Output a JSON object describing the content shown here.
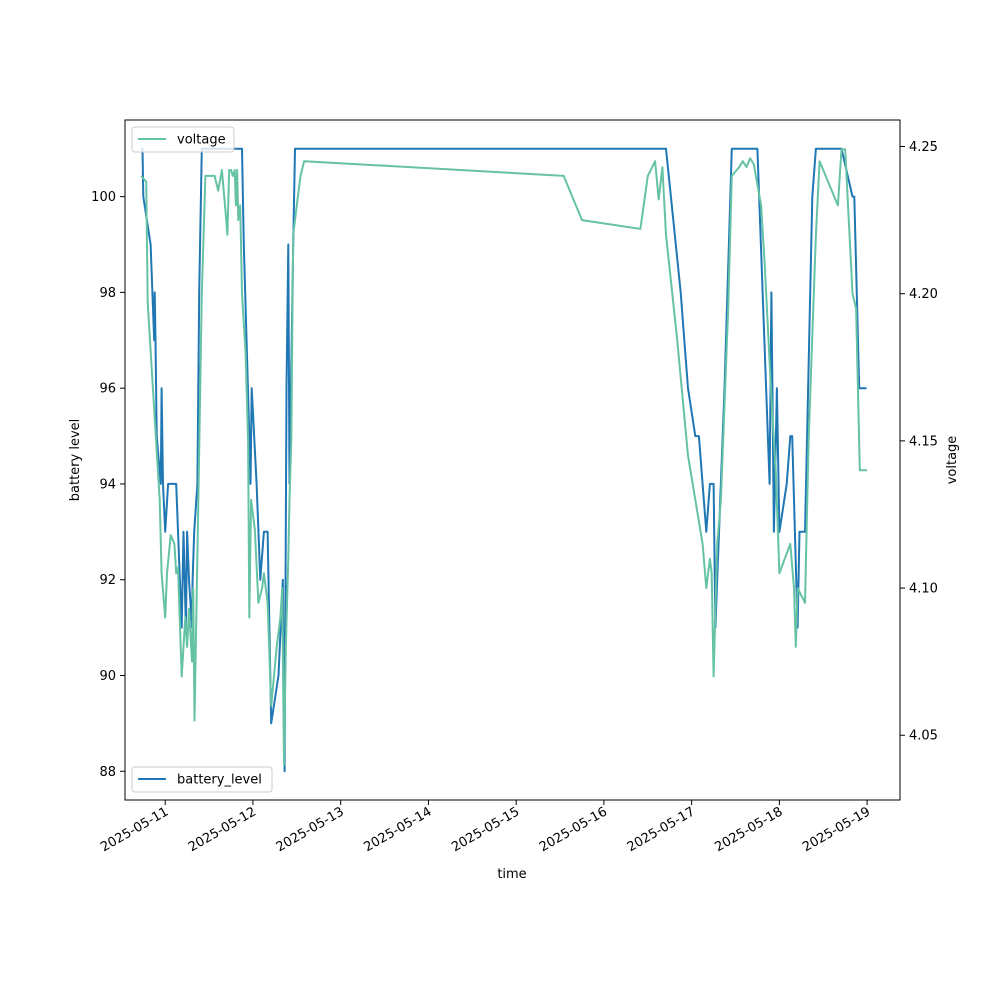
{
  "chart_data": {
    "type": "line",
    "xlabel": "time",
    "ylabel_left": "battery level",
    "ylabel_right": "voltage",
    "x_ticks": [
      "2025-05-11",
      "2025-05-12",
      "2025-05-13",
      "2025-05-14",
      "2025-05-15",
      "2025-05-16",
      "2025-05-17",
      "2025-05-18",
      "2025-05-19"
    ],
    "x_range": [
      "2025-05-10 13:00",
      "2025-05-19 09:00"
    ],
    "left_axis": {
      "ticks": [
        "88",
        "90",
        "92",
        "94",
        "96",
        "98",
        "100"
      ],
      "ylim": [
        87.4,
        101.6
      ]
    },
    "right_axis": {
      "ticks": [
        "4.05",
        "4.10",
        "4.15",
        "4.20",
        "4.25"
      ],
      "ylim": [
        4.028,
        4.259
      ]
    },
    "grid": false,
    "legend_voltage": {
      "label": "voltage",
      "placement": "upper left"
    },
    "legend_battery": {
      "label": "battery_level",
      "placement": "lower left"
    },
    "series": [
      {
        "name": "battery_level",
        "axis": "left",
        "color": "#1f77b4",
        "points": [
          [
            "2025-05-10 17:24",
            101
          ],
          [
            "2025-05-10 17:48",
            101
          ],
          [
            "2025-05-10 18:00",
            100
          ],
          [
            "2025-05-10 20:00",
            99
          ],
          [
            "2025-05-10 21:00",
            97
          ],
          [
            "2025-05-10 21:07",
            98
          ],
          [
            "2025-05-10 21:20",
            97
          ],
          [
            "2025-05-10 21:40",
            95
          ],
          [
            "2025-05-10 22:48",
            94
          ],
          [
            "2025-05-10 23:00",
            96
          ],
          [
            "2025-05-10 23:24",
            94
          ],
          [
            "2025-05-11 00:00",
            93
          ],
          [
            "2025-05-11 00:48",
            94
          ],
          [
            "2025-05-11 03:00",
            94
          ],
          [
            "2025-05-11 04:30",
            91
          ],
          [
            "2025-05-11 05:00",
            93
          ],
          [
            "2025-05-11 05:40",
            91
          ],
          [
            "2025-05-11 06:00",
            93
          ],
          [
            "2025-05-11 06:30",
            92
          ],
          [
            "2025-05-11 07:20",
            91
          ],
          [
            "2025-05-11 07:30",
            92
          ],
          [
            "2025-05-11 07:55",
            93
          ],
          [
            "2025-05-11 08:48",
            94
          ],
          [
            "2025-05-11 09:18",
            98
          ],
          [
            "2025-05-11 10:00",
            101
          ],
          [
            "2025-05-11 12:00",
            101
          ],
          [
            "2025-05-11 18:00",
            101
          ],
          [
            "2025-05-11 21:00",
            101
          ],
          [
            "2025-05-11 21:30",
            99
          ],
          [
            "2025-05-11 23:00",
            95
          ],
          [
            "2025-05-11 23:20",
            94
          ],
          [
            "2025-05-11 23:40",
            96
          ],
          [
            "2025-05-12 01:00",
            94
          ],
          [
            "2025-05-12 02:00",
            92
          ],
          [
            "2025-05-12 03:00",
            93
          ],
          [
            "2025-05-12 04:00",
            93
          ],
          [
            "2025-05-12 05:00",
            89
          ],
          [
            "2025-05-12 07:00",
            90
          ],
          [
            "2025-05-12 08:10",
            92
          ],
          [
            "2025-05-12 08:40",
            88
          ],
          [
            "2025-05-12 09:10",
            96
          ],
          [
            "2025-05-12 09:40",
            99
          ],
          [
            "2025-05-12 10:00",
            94
          ],
          [
            "2025-05-12 11:00",
            99
          ],
          [
            "2025-05-12 11:30",
            101
          ],
          [
            "2025-05-16 17:00",
            101
          ],
          [
            "2025-05-16 21:00",
            98
          ],
          [
            "2025-05-16 22:00",
            97
          ],
          [
            "2025-05-16 23:00",
            96
          ],
          [
            "2025-05-17 01:00",
            95
          ],
          [
            "2025-05-17 02:00",
            95
          ],
          [
            "2025-05-17 04:00",
            93
          ],
          [
            "2025-05-17 05:00",
            94
          ],
          [
            "2025-05-17 06:00",
            94
          ],
          [
            "2025-05-17 06:30",
            91
          ],
          [
            "2025-05-17 07:00",
            92
          ],
          [
            "2025-05-17 09:00",
            96
          ],
          [
            "2025-05-17 11:00",
            101
          ],
          [
            "2025-05-17 16:00",
            101
          ],
          [
            "2025-05-17 16:30",
            101
          ],
          [
            "2025-05-17 18:00",
            101
          ],
          [
            "2025-05-17 21:20",
            94
          ],
          [
            "2025-05-17 21:50",
            98
          ],
          [
            "2025-05-17 22:30",
            93
          ],
          [
            "2025-05-17 23:20",
            96
          ],
          [
            "2025-05-18 00:00",
            93
          ],
          [
            "2025-05-18 02:00",
            94
          ],
          [
            "2025-05-18 03:00",
            95
          ],
          [
            "2025-05-18 03:30",
            95
          ],
          [
            "2025-05-18 05:00",
            91
          ],
          [
            "2025-05-18 05:30",
            93
          ],
          [
            "2025-05-18 07:00",
            93
          ],
          [
            "2025-05-18 09:00",
            100
          ],
          [
            "2025-05-18 10:00",
            101
          ],
          [
            "2025-05-18 17:00",
            101
          ],
          [
            "2025-05-18 20:00",
            100
          ],
          [
            "2025-05-18 20:30",
            100
          ],
          [
            "2025-05-18 21:50",
            96
          ],
          [
            "2025-05-18 23:50",
            96
          ]
        ]
      },
      {
        "name": "voltage",
        "axis": "right",
        "color": "#66c2a5",
        "points": [
          [
            "2025-05-10 17:24",
            4.24
          ],
          [
            "2025-05-10 18:48",
            4.238
          ],
          [
            "2025-05-10 19:12",
            4.197
          ],
          [
            "2025-05-10 21:30",
            4.15
          ],
          [
            "2025-05-10 22:30",
            4.13
          ],
          [
            "2025-05-10 23:00",
            4.105
          ],
          [
            "2025-05-11 00:00",
            4.09
          ],
          [
            "2025-05-11 00:30",
            4.105
          ],
          [
            "2025-05-11 01:30",
            4.118
          ],
          [
            "2025-05-11 02:30",
            4.115
          ],
          [
            "2025-05-11 03:00",
            4.105
          ],
          [
            "2025-05-11 03:30",
            4.107
          ],
          [
            "2025-05-11 04:30",
            4.07
          ],
          [
            "2025-05-11 05:30",
            4.09
          ],
          [
            "2025-05-11 06:00",
            4.08
          ],
          [
            "2025-05-11 06:30",
            4.093
          ],
          [
            "2025-05-11 07:20",
            4.075
          ],
          [
            "2025-05-11 07:40",
            4.1
          ],
          [
            "2025-05-11 08:00",
            4.055
          ],
          [
            "2025-05-11 09:00",
            4.125
          ],
          [
            "2025-05-11 10:00",
            4.2
          ],
          [
            "2025-05-11 11:00",
            4.24
          ],
          [
            "2025-05-11 12:00",
            4.24
          ],
          [
            "2025-05-11 13:30",
            4.24
          ],
          [
            "2025-05-11 14:30",
            4.235
          ],
          [
            "2025-05-11 15:30",
            4.242
          ],
          [
            "2025-05-11 16:30",
            4.228
          ],
          [
            "2025-05-11 17:00",
            4.22
          ],
          [
            "2025-05-11 17:30",
            4.242
          ],
          [
            "2025-05-11 18:00",
            4.242
          ],
          [
            "2025-05-11 18:30",
            4.24
          ],
          [
            "2025-05-11 19:00",
            4.242
          ],
          [
            "2025-05-11 19:20",
            4.23
          ],
          [
            "2025-05-11 19:40",
            4.242
          ],
          [
            "2025-05-11 20:00",
            4.225
          ],
          [
            "2025-05-11 20:30",
            4.23
          ],
          [
            "2025-05-11 21:00",
            4.2
          ],
          [
            "2025-05-11 22:00",
            4.18
          ],
          [
            "2025-05-11 22:40",
            4.15
          ],
          [
            "2025-05-11 23:00",
            4.09
          ],
          [
            "2025-05-11 23:30",
            4.13
          ],
          [
            "2025-05-12 00:30",
            4.12
          ],
          [
            "2025-05-12 01:30",
            4.095
          ],
          [
            "2025-05-12 02:30",
            4.1
          ],
          [
            "2025-05-12 03:00",
            4.105
          ],
          [
            "2025-05-12 04:00",
            4.095
          ],
          [
            "2025-05-12 05:00",
            4.06
          ],
          [
            "2025-05-12 06:30",
            4.08
          ],
          [
            "2025-05-12 07:30",
            4.09
          ],
          [
            "2025-05-12 08:00",
            4.1
          ],
          [
            "2025-05-12 08:30",
            4.04
          ],
          [
            "2025-05-12 09:00",
            4.08
          ],
          [
            "2025-05-12 09:40",
            4.11
          ],
          [
            "2025-05-12 10:00",
            4.13
          ],
          [
            "2025-05-12 10:30",
            4.15
          ],
          [
            "2025-05-12 11:00",
            4.22
          ],
          [
            "2025-05-12 12:00",
            4.23
          ],
          [
            "2025-05-12 13:00",
            4.24
          ],
          [
            "2025-05-12 14:00",
            4.245
          ],
          [
            "2025-05-15 13:00",
            4.24
          ],
          [
            "2025-05-15 18:00",
            4.225
          ],
          [
            "2025-05-16 10:00",
            4.222
          ],
          [
            "2025-05-16 12:00",
            4.24
          ],
          [
            "2025-05-16 14:00",
            4.245
          ],
          [
            "2025-05-16 15:00",
            4.232
          ],
          [
            "2025-05-16 16:00",
            4.243
          ],
          [
            "2025-05-16 17:00",
            4.22
          ],
          [
            "2025-05-16 20:00",
            4.185
          ],
          [
            "2025-05-16 23:00",
            4.145
          ],
          [
            "2025-05-17 01:00",
            4.13
          ],
          [
            "2025-05-17 03:00",
            4.115
          ],
          [
            "2025-05-17 04:00",
            4.1
          ],
          [
            "2025-05-17 05:00",
            4.11
          ],
          [
            "2025-05-17 05:30",
            4.105
          ],
          [
            "2025-05-17 06:00",
            4.07
          ],
          [
            "2025-05-17 07:00",
            4.115
          ],
          [
            "2025-05-17 08:00",
            4.13
          ],
          [
            "2025-05-17 10:00",
            4.195
          ],
          [
            "2025-05-17 11:00",
            4.24
          ],
          [
            "2025-05-17 13:00",
            4.243
          ],
          [
            "2025-05-17 14:00",
            4.245
          ],
          [
            "2025-05-17 15:00",
            4.243
          ],
          [
            "2025-05-17 16:00",
            4.246
          ],
          [
            "2025-05-17 17:00",
            4.244
          ],
          [
            "2025-05-17 19:00",
            4.23
          ],
          [
            "2025-05-17 20:00",
            4.21
          ],
          [
            "2025-05-17 22:00",
            4.16
          ],
          [
            "2025-05-17 23:00",
            4.14
          ],
          [
            "2025-05-18 00:00",
            4.105
          ],
          [
            "2025-05-18 01:30",
            4.11
          ],
          [
            "2025-05-18 03:00",
            4.115
          ],
          [
            "2025-05-18 04:00",
            4.1
          ],
          [
            "2025-05-18 04:30",
            4.08
          ],
          [
            "2025-05-18 05:00",
            4.1
          ],
          [
            "2025-05-18 07:00",
            4.095
          ],
          [
            "2025-05-18 08:00",
            4.15
          ],
          [
            "2025-05-18 10:00",
            4.22
          ],
          [
            "2025-05-18 11:00",
            4.245
          ],
          [
            "2025-05-18 15:00",
            4.233
          ],
          [
            "2025-05-18 16:00",
            4.23
          ],
          [
            "2025-05-18 17:00",
            4.249
          ],
          [
            "2025-05-18 18:00",
            4.249
          ],
          [
            "2025-05-18 20:00",
            4.2
          ],
          [
            "2025-05-18 21:00",
            4.195
          ],
          [
            "2025-05-18 22:00",
            4.14
          ],
          [
            "2025-05-19 00:00",
            4.14
          ]
        ]
      }
    ]
  }
}
